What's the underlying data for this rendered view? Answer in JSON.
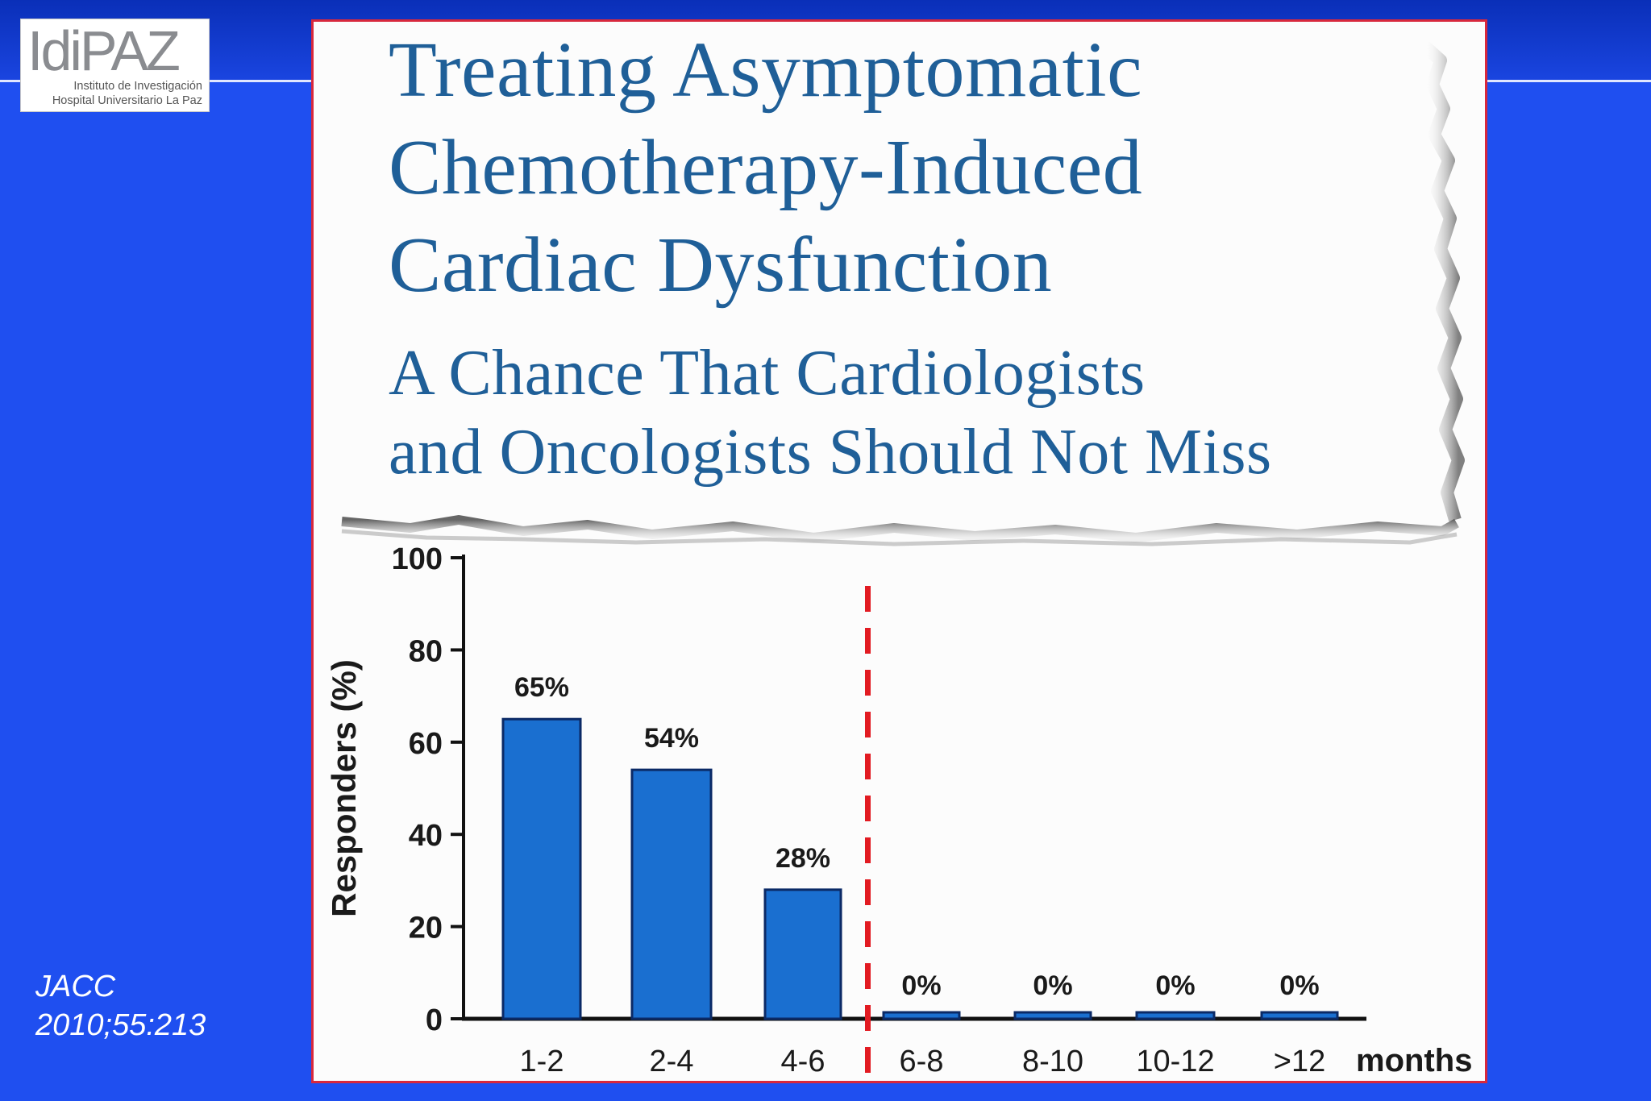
{
  "logo": {
    "text": "IdiPAZ",
    "line1": "Instituto de Investigación",
    "line2": "Hospital Universitario La Paz"
  },
  "citation": {
    "journal": "JACC",
    "ref": "2010;55:213"
  },
  "article": {
    "title_lines": [
      "Treating Asymptomatic",
      "Chemotherapy-Induced",
      "Cardiac Dysfunction"
    ],
    "subtitle_lines": [
      "A Chance That Cardiologists",
      "and Oncologists Should Not Miss"
    ]
  },
  "colors": {
    "background": "#1f4ff0",
    "bar": "#1a6fd0",
    "cutoff_line": "#e21b22",
    "title_text": "#1f5f98"
  },
  "chart_data": {
    "type": "bar",
    "ylabel": "Responders (%)",
    "xlabel": "months",
    "ylim": [
      0,
      100
    ],
    "yticks": [
      0,
      20,
      40,
      60,
      80,
      100
    ],
    "categories": [
      "1-2",
      "2-4",
      "4-6",
      "6-8",
      "8-10",
      "10-12",
      ">12"
    ],
    "values": [
      65,
      54,
      28,
      0,
      0,
      0,
      0
    ],
    "data_labels": [
      "65%",
      "54%",
      "28%",
      "0%",
      "0%",
      "0%",
      "0%"
    ],
    "cutoff_between": [
      "4-6",
      "6-8"
    ],
    "grid": false
  }
}
